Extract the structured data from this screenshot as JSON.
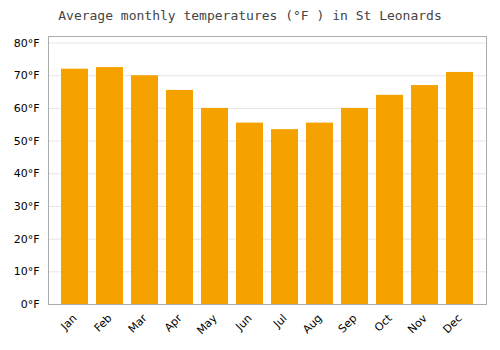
{
  "chart_data": {
    "type": "bar",
    "title": "Average monthly temperatures (°F ) in St Leonards",
    "categories": [
      "Jan",
      "Feb",
      "Mar",
      "Apr",
      "May",
      "Jun",
      "Jul",
      "Aug",
      "Sep",
      "Oct",
      "Nov",
      "Dec"
    ],
    "values": [
      72,
      72.5,
      70,
      65.5,
      60,
      55.5,
      53.5,
      55.5,
      60,
      64,
      67,
      71
    ],
    "color": "#F5A200",
    "ylim": [
      0,
      82
    ],
    "yticks": [
      {
        "value": 0,
        "label": "0°F"
      },
      {
        "value": 10,
        "label": "10°F"
      },
      {
        "value": 20,
        "label": "20°F"
      },
      {
        "value": 30,
        "label": "30°F"
      },
      {
        "value": 40,
        "label": "40°F"
      },
      {
        "value": 50,
        "label": "50°F"
      },
      {
        "value": 60,
        "label": "60°F"
      },
      {
        "value": 70,
        "label": "70°F"
      },
      {
        "value": 80,
        "label": "80°F"
      }
    ],
    "grid": true
  }
}
